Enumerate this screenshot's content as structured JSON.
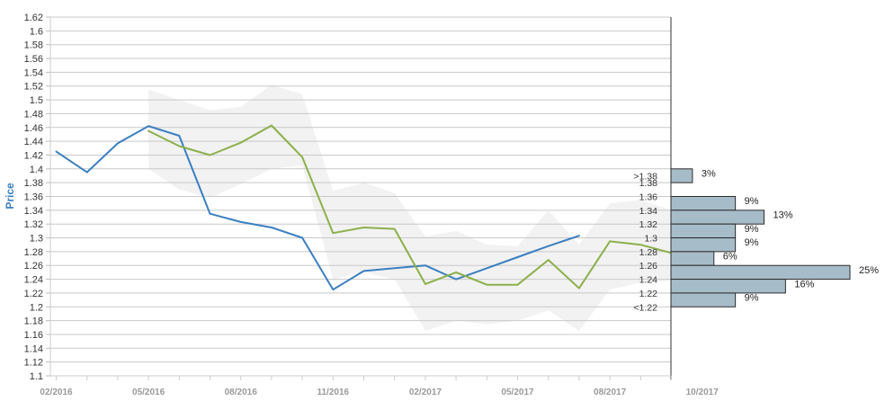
{
  "chart_data": {
    "type": "line",
    "ylabel": "Price",
    "ylim": [
      1.1,
      1.62
    ],
    "y_ticks": [
      "1.62",
      "1.6",
      "1.58",
      "1.56",
      "1.54",
      "1.52",
      "1.5",
      "1.48",
      "1.46",
      "1.44",
      "1.42",
      "1.4",
      "1.38",
      "1.36",
      "1.34",
      "1.32",
      "1.3",
      "1.28",
      "1.26",
      "1.24",
      "1.22",
      "1.2",
      "1.18",
      "1.16",
      "1.14",
      "1.12",
      "1.1"
    ],
    "x_ticks": [
      "02/2016",
      "05/2016",
      "08/2016",
      "11/2016",
      "02/2017",
      "05/2017",
      "08/2017",
      "10/2017"
    ],
    "grid": true,
    "colors": {
      "series_blue": "#3a7fc1",
      "series_green": "#8bb04a",
      "band": "#f2f2f2",
      "bar_fill": "#a7bcc9",
      "bar_stroke": "#2b2b2b",
      "grid": "#c8c8c8"
    },
    "series": [
      {
        "color": "#3a7fc1",
        "points": [
          [
            "2016-02",
            1.425
          ],
          [
            "2016-03",
            1.395
          ],
          [
            "2016-04",
            1.437
          ],
          [
            "2016-05",
            1.462
          ],
          [
            "2016-06",
            1.448
          ],
          [
            "2016-07",
            1.335
          ],
          [
            "2016-08",
            1.323
          ],
          [
            "2016-09",
            1.315
          ],
          [
            "2016-10",
            1.3
          ],
          [
            "2016-11",
            1.225
          ],
          [
            "2016-12",
            1.252
          ],
          [
            "2017-01",
            1.256
          ],
          [
            "2017-02",
            1.26
          ],
          [
            "2017-03",
            1.24
          ],
          [
            "2017-04",
            1.256
          ],
          [
            "2017-05",
            1.272
          ],
          [
            "2017-06",
            1.288
          ],
          [
            "2017-07",
            1.303
          ]
        ]
      },
      {
        "color": "#8bb04a",
        "points": [
          [
            "2016-05",
            1.455
          ],
          [
            "2016-06",
            1.433
          ],
          [
            "2016-07",
            1.42
          ],
          [
            "2016-08",
            1.438
          ],
          [
            "2016-09",
            1.463
          ],
          [
            "2016-10",
            1.417
          ],
          [
            "2016-11",
            1.307
          ],
          [
            "2016-12",
            1.315
          ],
          [
            "2017-01",
            1.313
          ],
          [
            "2017-02",
            1.233
          ],
          [
            "2017-03",
            1.25
          ],
          [
            "2017-04",
            1.232
          ],
          [
            "2017-05",
            1.232
          ],
          [
            "2017-06",
            1.268
          ],
          [
            "2017-07",
            1.227
          ],
          [
            "2017-08",
            1.295
          ],
          [
            "2017-09",
            1.29
          ],
          [
            "2017-10",
            1.278
          ]
        ]
      }
    ],
    "range_band": [
      [
        "2016-05",
        1.4,
        1.515
      ],
      [
        "2016-06",
        1.37,
        1.5
      ],
      [
        "2016-07",
        1.358,
        1.485
      ],
      [
        "2016-08",
        1.378,
        1.49
      ],
      [
        "2016-09",
        1.4,
        1.522
      ],
      [
        "2016-10",
        1.405,
        1.508
      ],
      [
        "2016-11",
        1.24,
        1.368
      ],
      [
        "2016-12",
        1.25,
        1.38
      ],
      [
        "2017-01",
        1.24,
        1.365
      ],
      [
        "2017-02",
        1.165,
        1.302
      ],
      [
        "2017-03",
        1.18,
        1.31
      ],
      [
        "2017-04",
        1.175,
        1.29
      ],
      [
        "2017-05",
        1.18,
        1.288
      ],
      [
        "2017-06",
        1.195,
        1.34
      ],
      [
        "2017-07",
        1.165,
        1.29
      ],
      [
        "2017-08",
        1.225,
        1.35
      ],
      [
        "2017-09",
        1.235,
        1.355
      ],
      [
        "2017-10",
        1.238,
        1.34
      ]
    ],
    "distribution": {
      "labels": [
        ">1.38",
        "1.38",
        "1.36",
        "1.34",
        "1.32",
        "1.3",
        "1.28",
        "1.26",
        "1.24",
        "1.22",
        "<1.22"
      ],
      "bins": [
        {
          "from": 1.38,
          "to": 1.4,
          "value": 3,
          "label": "3%"
        },
        {
          "from": 1.34,
          "to": 1.36,
          "value": 9,
          "label": "9%"
        },
        {
          "from": 1.32,
          "to": 1.34,
          "value": 13,
          "label": "13%"
        },
        {
          "from": 1.3,
          "to": 1.32,
          "value": 9,
          "label": "9%"
        },
        {
          "from": 1.28,
          "to": 1.3,
          "value": 9,
          "label": "9%"
        },
        {
          "from": 1.26,
          "to": 1.28,
          "value": 6,
          "label": "6%"
        },
        {
          "from": 1.24,
          "to": 1.26,
          "value": 25,
          "label": "25%"
        },
        {
          "from": 1.22,
          "to": 1.24,
          "value": 16,
          "label": "16%"
        },
        {
          "from": 1.2,
          "to": 1.22,
          "value": 9,
          "label": "9%"
        }
      ]
    }
  }
}
